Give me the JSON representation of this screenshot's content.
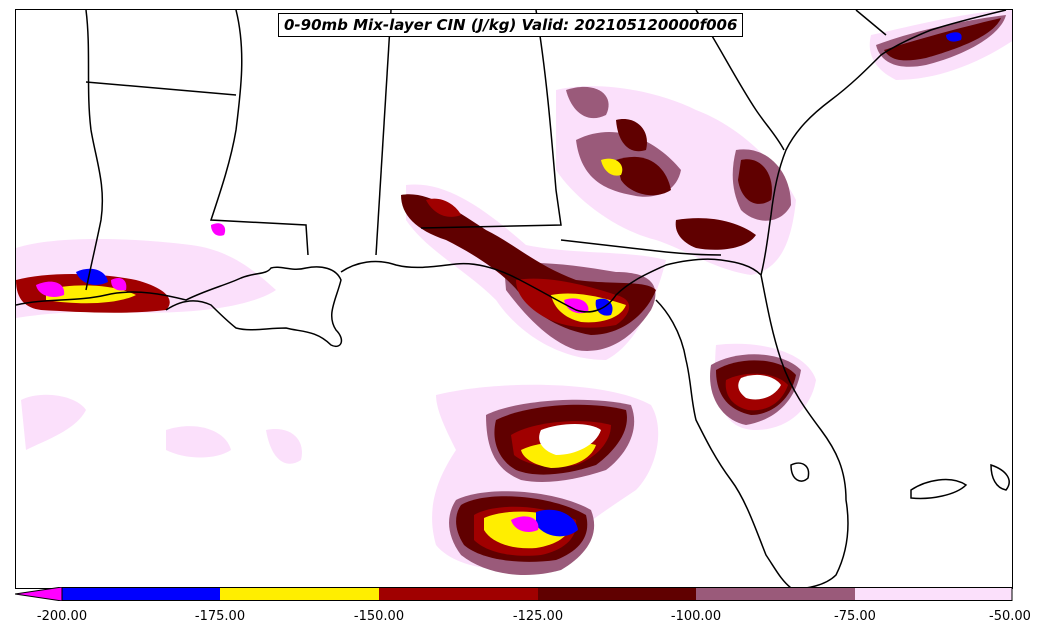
{
  "title": "0-90mb Mix-layer CIN (J/kg) Valid: 202105120000f006",
  "colorbar": {
    "ticks": [
      "-200.00",
      "-175.00",
      "-150.00",
      "-125.00",
      "-100.00",
      "-75.00",
      "-50.00"
    ],
    "bins": [
      {
        "range": "< -200",
        "color": "#ff00ff"
      },
      {
        "range": "-200 to -175",
        "color": "#0000ff"
      },
      {
        "range": "-175 to -150",
        "color": "#ffee00"
      },
      {
        "range": "-150 to -125",
        "color": "#a00000"
      },
      {
        "range": "-125 to -100",
        "color": "#600000"
      },
      {
        "range": "-100 to -75",
        "color": "#9a5a7a"
      },
      {
        "range": "-75 to -50",
        "color": "#fbe0fb"
      }
    ]
  },
  "colors": {
    "pale": "#fbe0fb",
    "mauve": "#9a5a7a",
    "darkred": "#600000",
    "red": "#a00000",
    "yellow": "#ffee00",
    "blue": "#0000ff",
    "magenta": "#ff00ff"
  }
}
